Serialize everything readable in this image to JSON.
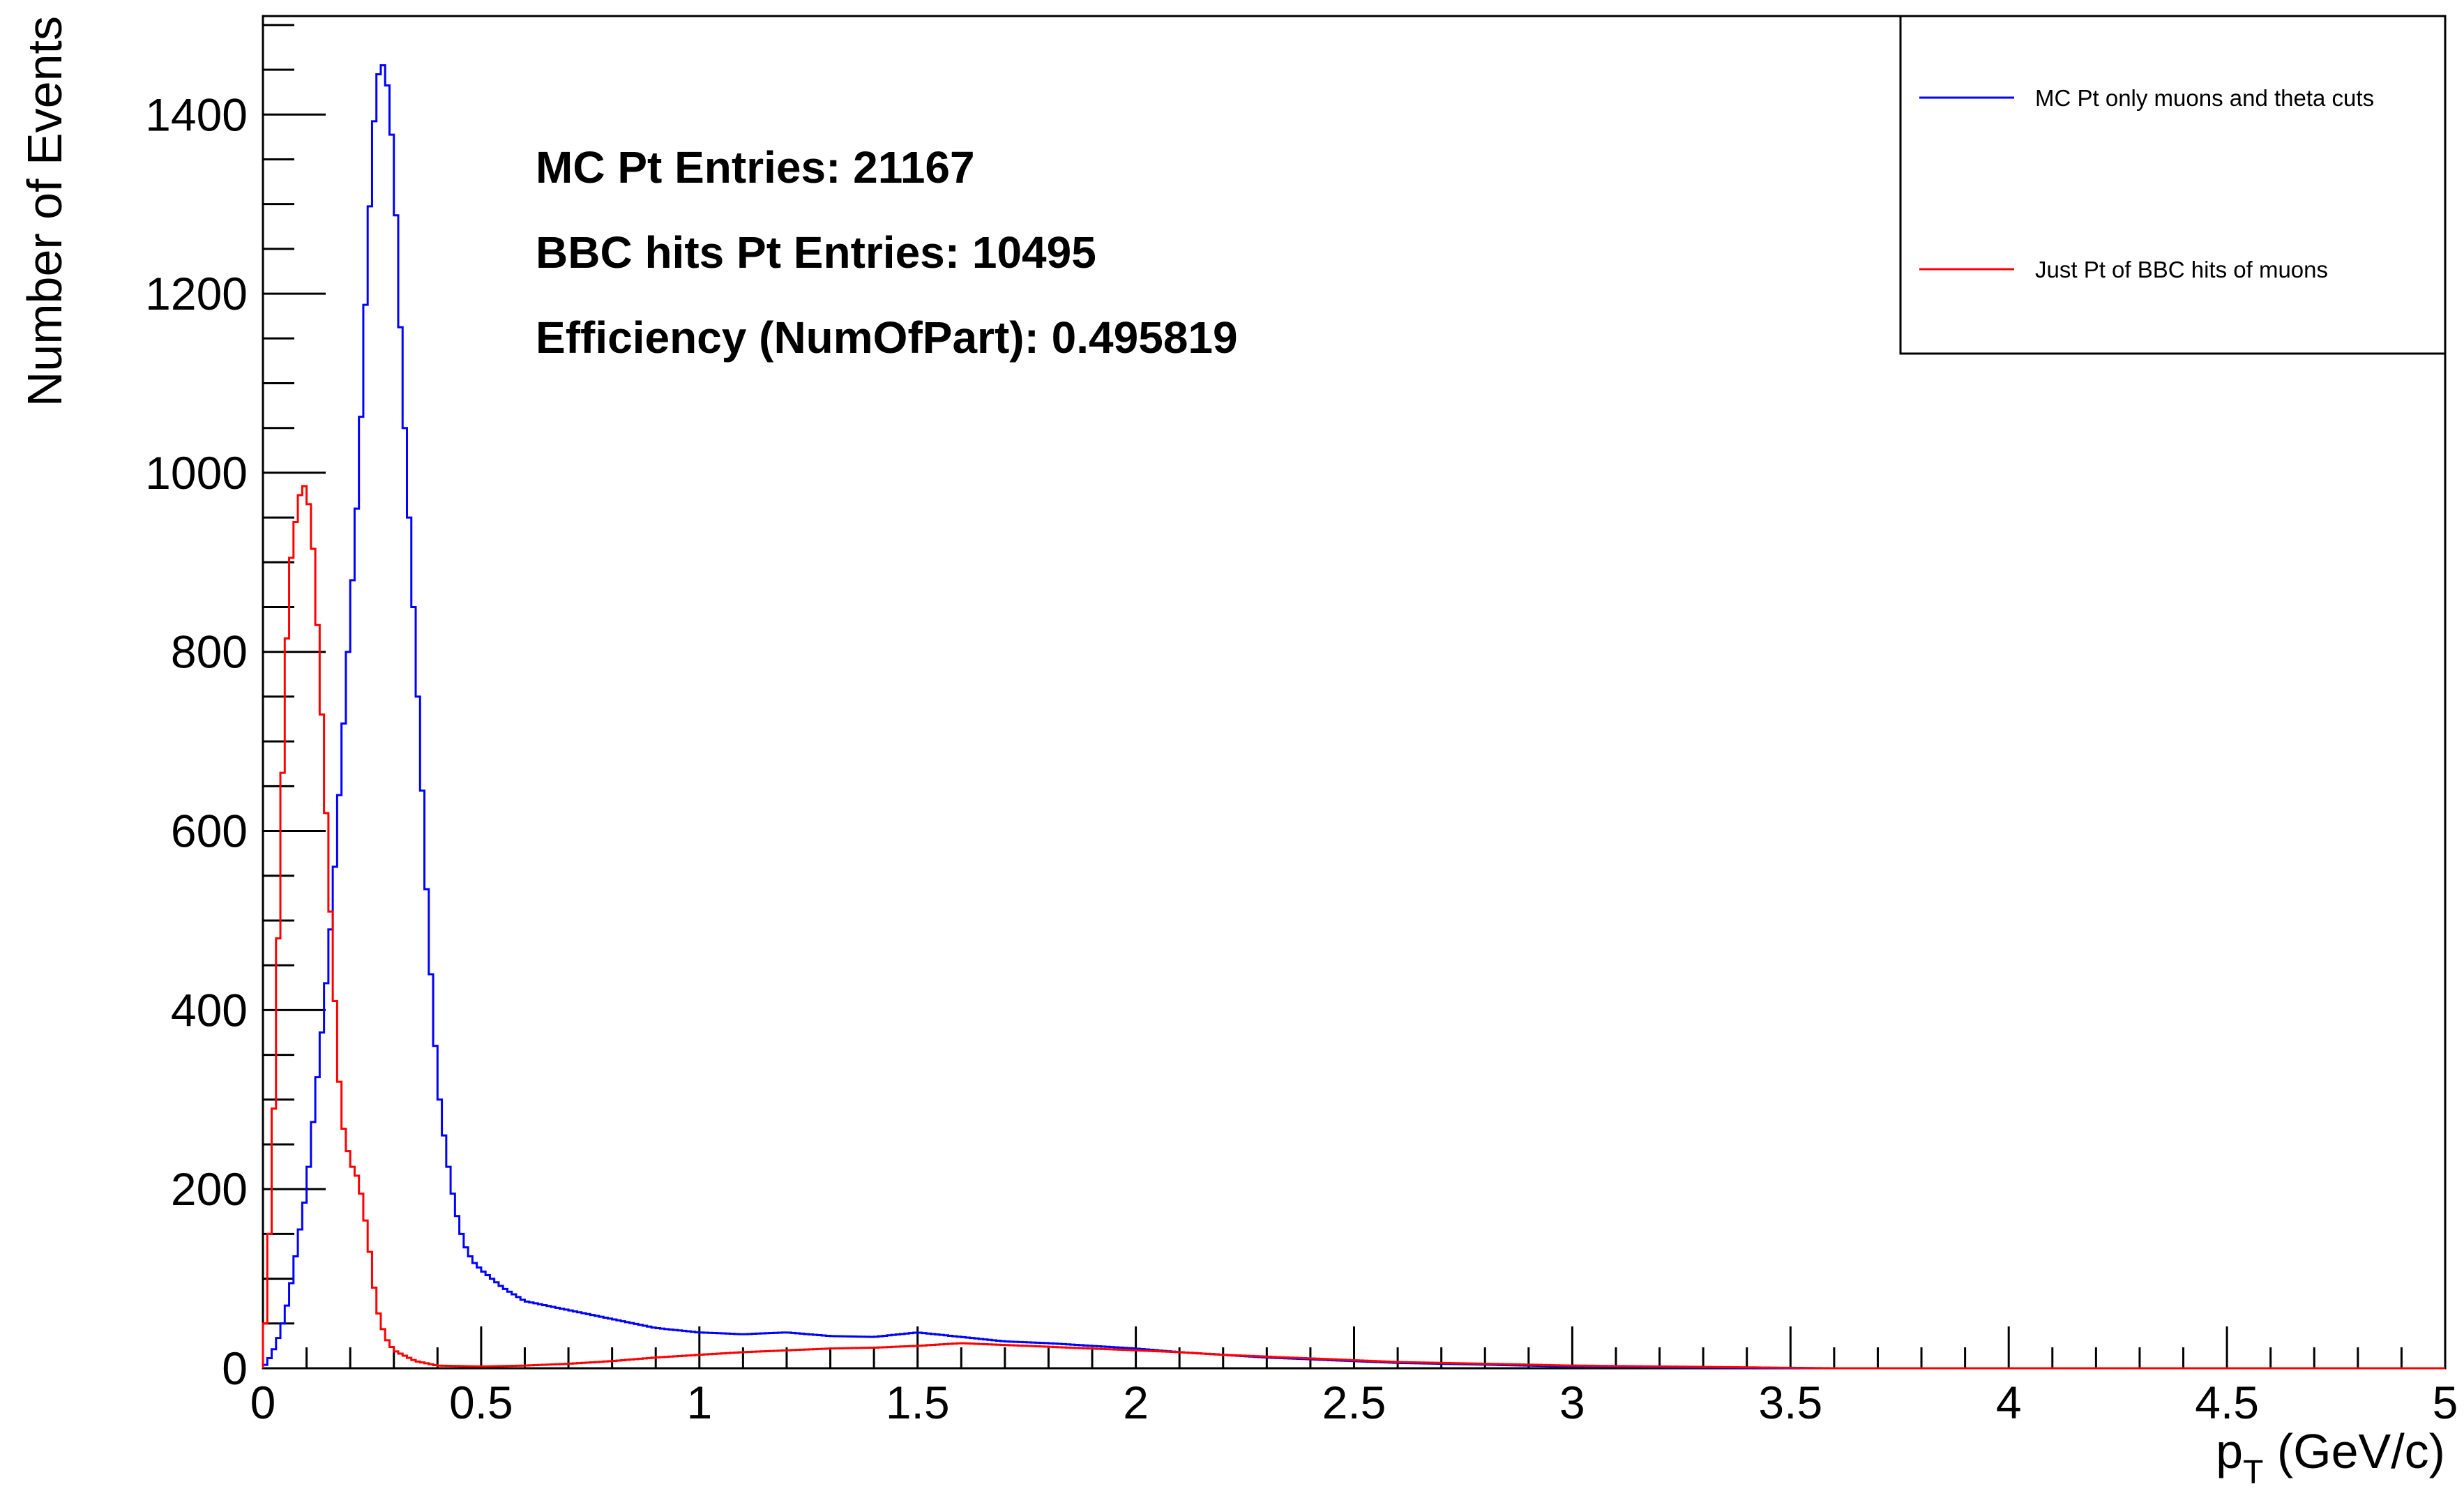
{
  "chart_data": {
    "type": "line",
    "title": "",
    "xlabel": "p_T (GeV/c)",
    "xlabel_main": "p",
    "xlabel_sub": "T",
    "xlabel_rest": " (GeV/c)",
    "ylabel": "Number of Events",
    "xlim": [
      0,
      5
    ],
    "ylim": [
      0,
      1510
    ],
    "x_ticks": [
      "0",
      "0.5",
      "1",
      "1.5",
      "2",
      "2.5",
      "3",
      "3.5",
      "4",
      "4.5",
      "5"
    ],
    "y_ticks": [
      "0",
      "200",
      "400",
      "600",
      "800",
      "1000",
      "1200",
      "1400"
    ],
    "bin_width": 0.01,
    "grid": false,
    "legend_position": "top-right",
    "annotations": [
      "MC Pt Entries: 21167",
      "BBC hits Pt Entries: 10495",
      "Efficiency (NumOfPart): 0.495819"
    ],
    "series": [
      {
        "name": "MC Pt only muons and theta cuts",
        "color": "#0000ff",
        "points": [
          [
            0,
            0
          ],
          [
            0.02,
            15
          ],
          [
            0.04,
            40
          ],
          [
            0.06,
            80
          ],
          [
            0.08,
            140
          ],
          [
            0.1,
            200
          ],
          [
            0.12,
            300
          ],
          [
            0.14,
            400
          ],
          [
            0.16,
            520
          ],
          [
            0.18,
            680
          ],
          [
            0.2,
            840
          ],
          [
            0.22,
            1000
          ],
          [
            0.24,
            1250
          ],
          [
            0.26,
            1440
          ],
          [
            0.28,
            1460
          ],
          [
            0.3,
            1350
          ],
          [
            0.32,
            1100
          ],
          [
            0.34,
            900
          ],
          [
            0.36,
            700
          ],
          [
            0.38,
            480
          ],
          [
            0.4,
            320
          ],
          [
            0.42,
            240
          ],
          [
            0.44,
            180
          ],
          [
            0.46,
            140
          ],
          [
            0.48,
            120
          ],
          [
            0.5,
            110
          ],
          [
            0.55,
            90
          ],
          [
            0.6,
            75
          ],
          [
            0.7,
            65
          ],
          [
            0.8,
            55
          ],
          [
            0.9,
            45
          ],
          [
            1.0,
            40
          ],
          [
            1.1,
            38
          ],
          [
            1.2,
            40
          ],
          [
            1.3,
            36
          ],
          [
            1.4,
            35
          ],
          [
            1.5,
            40
          ],
          [
            1.6,
            35
          ],
          [
            1.7,
            30
          ],
          [
            1.8,
            28
          ],
          [
            1.9,
            25
          ],
          [
            2.0,
            22
          ],
          [
            2.1,
            18
          ],
          [
            2.2,
            15
          ],
          [
            2.3,
            12
          ],
          [
            2.4,
            10
          ],
          [
            2.5,
            8
          ],
          [
            2.6,
            6
          ],
          [
            2.7,
            5
          ],
          [
            2.8,
            4
          ],
          [
            2.9,
            3
          ],
          [
            3.0,
            2
          ],
          [
            3.2,
            1
          ],
          [
            3.5,
            0
          ],
          [
            5.0,
            0
          ]
        ]
      },
      {
        "name": "Just Pt of BBC hits of muons",
        "color": "#ff0000",
        "points": [
          [
            0,
            0
          ],
          [
            0.01,
            100
          ],
          [
            0.02,
            200
          ],
          [
            0.03,
            380
          ],
          [
            0.04,
            580
          ],
          [
            0.05,
            750
          ],
          [
            0.06,
            880
          ],
          [
            0.07,
            930
          ],
          [
            0.08,
            960
          ],
          [
            0.09,
            990
          ],
          [
            0.1,
            980
          ],
          [
            0.11,
            950
          ],
          [
            0.12,
            880
          ],
          [
            0.13,
            780
          ],
          [
            0.14,
            680
          ],
          [
            0.15,
            560
          ],
          [
            0.16,
            460
          ],
          [
            0.17,
            360
          ],
          [
            0.18,
            280
          ],
          [
            0.2,
            230
          ],
          [
            0.22,
            210
          ],
          [
            0.24,
            150
          ],
          [
            0.26,
            70
          ],
          [
            0.28,
            35
          ],
          [
            0.3,
            20
          ],
          [
            0.35,
            8
          ],
          [
            0.4,
            3
          ],
          [
            0.5,
            2
          ],
          [
            0.6,
            3
          ],
          [
            0.7,
            5
          ],
          [
            0.8,
            8
          ],
          [
            0.9,
            12
          ],
          [
            1.0,
            15
          ],
          [
            1.1,
            18
          ],
          [
            1.2,
            20
          ],
          [
            1.3,
            22
          ],
          [
            1.4,
            23
          ],
          [
            1.5,
            25
          ],
          [
            1.6,
            28
          ],
          [
            1.7,
            26
          ],
          [
            1.8,
            24
          ],
          [
            1.9,
            22
          ],
          [
            2.0,
            20
          ],
          [
            2.1,
            18
          ],
          [
            2.2,
            15
          ],
          [
            2.3,
            13
          ],
          [
            2.4,
            11
          ],
          [
            2.5,
            9
          ],
          [
            2.6,
            7
          ],
          [
            2.7,
            6
          ],
          [
            2.8,
            5
          ],
          [
            2.9,
            4
          ],
          [
            3.0,
            3
          ],
          [
            3.2,
            2
          ],
          [
            3.4,
            1
          ],
          [
            3.6,
            0
          ],
          [
            5.0,
            0
          ]
        ]
      }
    ]
  }
}
